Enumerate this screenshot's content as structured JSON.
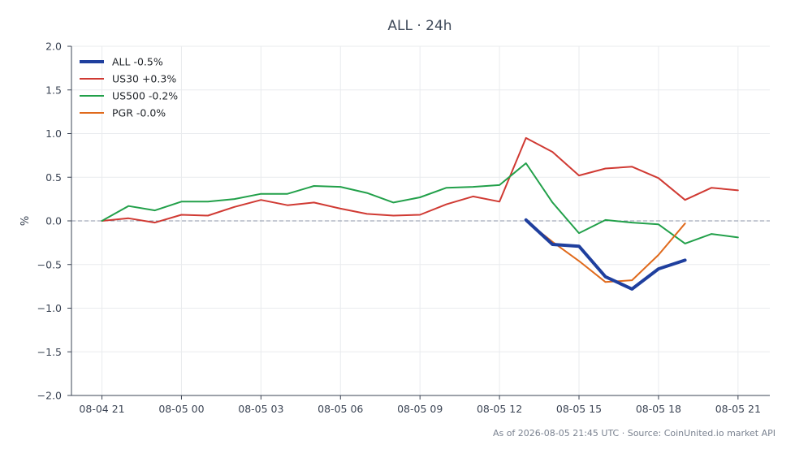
{
  "chart_data": {
    "type": "line",
    "title": "ALL · 24h",
    "ylabel": "%",
    "xlabel": "",
    "ylim": [
      -2.0,
      2.0
    ],
    "yticks": [
      "2.0",
      "1.5",
      "1.0",
      "0.5",
      "0.0",
      "−0.5",
      "−1.0",
      "−1.5",
      "−2.0"
    ],
    "ytick_values": [
      2.0,
      1.5,
      1.0,
      0.5,
      0.0,
      -0.5,
      -1.0,
      -1.5,
      -2.0
    ],
    "xticks": [
      "08-04 21",
      "08-05 00",
      "08-05 03",
      "08-05 06",
      "08-05 09",
      "08-05 12",
      "08-05 15",
      "08-05 18",
      "08-05 21"
    ],
    "xtick_hours": [
      0,
      3,
      6,
      9,
      12,
      15,
      18,
      21,
      24
    ],
    "xlim_hours": [
      -1.15,
      25.2
    ],
    "x_unit": "hours from 08-04 21:00",
    "grid": true,
    "baseline": 0.0,
    "legend_position": "top-left",
    "series": [
      {
        "name": "ALL -0.5%",
        "color": "#1f3f9e",
        "width": 4,
        "x": [
          16,
          17,
          18,
          19,
          20,
          21,
          22
        ],
        "values": [
          0.01,
          -0.27,
          -0.29,
          -0.64,
          -0.78,
          -0.55,
          -0.45
        ]
      },
      {
        "name": "US30 +0.3%",
        "color": "#d03a33",
        "width": 2,
        "x": [
          0,
          1,
          2,
          3,
          4,
          5,
          6,
          7,
          8,
          9,
          10,
          11,
          12,
          13,
          14,
          15,
          16,
          17,
          18,
          19,
          20,
          21,
          22,
          23,
          24
        ],
        "values": [
          0.0,
          0.03,
          -0.02,
          0.07,
          0.06,
          0.16,
          0.24,
          0.18,
          0.21,
          0.14,
          0.08,
          0.06,
          0.07,
          0.19,
          0.28,
          0.22,
          0.95,
          0.79,
          0.52,
          0.6,
          0.62,
          0.49,
          0.24,
          0.38,
          0.35
        ]
      },
      {
        "name": "US500 -0.2%",
        "color": "#22a04a",
        "width": 2,
        "x": [
          0,
          1,
          2,
          3,
          4,
          5,
          6,
          7,
          8,
          9,
          10,
          11,
          12,
          13,
          14,
          15,
          16,
          17,
          18,
          19,
          20,
          21,
          22,
          23,
          24
        ],
        "values": [
          0.0,
          0.17,
          0.12,
          0.22,
          0.22,
          0.25,
          0.31,
          0.31,
          0.4,
          0.39,
          0.32,
          0.21,
          0.27,
          0.38,
          0.39,
          0.41,
          0.66,
          0.21,
          -0.14,
          0.01,
          -0.02,
          -0.04,
          -0.26,
          -0.15,
          -0.19
        ]
      },
      {
        "name": "PGR -0.0%",
        "color": "#e06a1c",
        "width": 2,
        "x": [
          16,
          17,
          18,
          19,
          20,
          21,
          22
        ],
        "values": [
          0.0,
          -0.24,
          -0.46,
          -0.7,
          -0.68,
          -0.39,
          -0.03
        ]
      }
    ]
  },
  "footer": "As of 2026-08-05 21:45 UTC · Source: CoinUnited.io market API"
}
